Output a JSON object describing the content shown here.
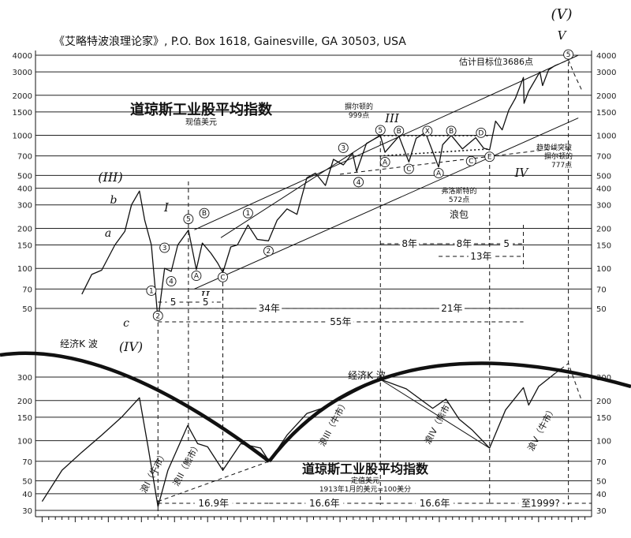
{
  "header": "《艾略特波浪理论家》, P.O. Box 1618, Gainesville, GA 30503, USA",
  "chart_data": [
    {
      "type": "line",
      "title": "道琼斯工业股平均指数",
      "subtitle": "现值美元",
      "yscale": "log",
      "ylim": [
        40,
        4000
      ],
      "y_ticks": [
        4000,
        3000,
        2000,
        1500,
        1000,
        700,
        500,
        400,
        300,
        200,
        150,
        100,
        70,
        50
      ],
      "annotations": {
        "top_wave": "(V)",
        "top_wave_v": "V",
        "target": "估计目标位3686点",
        "barron_999": "摒尔顿的",
        "barron_999_value": "999点",
        "barron_777": "摒尔顿的",
        "barron_777_value": "777点",
        "froth": "弗洛斯特的",
        "froth_value": "572点",
        "trend_break": "趋势线突破",
        "triangle": "浪包",
        "wave_III_big": "(III)",
        "wave_IV_big": "(IV)",
        "wave_I": "I",
        "wave_II": "II",
        "wave_III": "III",
        "wave_IV": "IV",
        "a": "a",
        "b": "b",
        "c": "c",
        "span_5a": "5",
        "span_5b": "5",
        "span_34": "34年",
        "span_55": "55年",
        "span_21": "21年",
        "span_8a": "8年",
        "span_8b": "8年",
        "span_13": "13年",
        "span_5c": "5"
      },
      "series": [
        {
          "x": [
            1921,
            1922.5,
            1924,
            1926,
            1927.5,
            1928.5,
            1929.7,
            1930.5,
            1931.5,
            1932.5,
            1933.5,
            1934.5,
            1935.5,
            1937.1,
            1938.3,
            1939.2,
            1940.5,
            1941.5,
            1942.3,
            1943.5,
            1944.5,
            1946.1,
            1947.5,
            1949.2,
            1950.5,
            1952,
            1953.5,
            1955,
            1956.3,
            1957.8,
            1959,
            1960.5,
            1961.9,
            1962.5,
            1964,
            1966.1,
            1966.8,
            1968.9,
            1970.4,
            1971.5,
            1972.9,
            1974.9,
            1975.5,
            1976.8,
            1978.5,
            1980.5,
            1981.7,
            1982.6,
            1983.5,
            1984.5,
            1985.5,
            1986.5,
            1987.7,
            1987.8,
            1988.5,
            1990.2,
            1990.6,
            1991.5,
            1992.5
          ],
          "values": [
            64,
            90,
            97,
            150,
            190,
            300,
            381,
            230,
            150,
            41,
            100,
            95,
            150,
            194,
            98,
            155,
            130,
            110,
            93,
            145,
            150,
            212,
            165,
            161,
            230,
            280,
            255,
            480,
            520,
            420,
            660,
            600,
            735,
            535,
            870,
            995,
            745,
            985,
            631,
            950,
            1051,
            577,
            850,
            1000,
            790,
            960,
            800,
            777,
            1280,
            1100,
            1550,
            1900,
            2722,
            1739,
            2150,
            2999,
            2365,
            3100,
            3350
          ]
        },
        {
          "name": "projection",
          "x": [
            1992.5,
            1994.5,
            1995.5,
            1996.5
          ],
          "values": [
            3350,
            3686,
            2800,
            2200
          ]
        }
      ]
    },
    {
      "type": "line",
      "title": "道琼斯工业股平均指数",
      "subtitle": "定值美元",
      "note": "1913年1月的美元=100美分",
      "yscale": "log",
      "ylim": [
        30,
        400
      ],
      "y_ticks": [
        300,
        200,
        150,
        100,
        70,
        50,
        40,
        30
      ],
      "labels": {
        "kwave_left": "经济K 波",
        "kwave_right": "经济K 波",
        "wave_1": "浪I（牛市）",
        "wave_2": "浪II（熊市）",
        "wave_3": "浪III（牛市）",
        "wave_4": "浪IV（熊市）",
        "wave_5": "浪V（牛市）",
        "span_169": "16.9年",
        "span_166a": "16.6年",
        "span_166b": "16.6年",
        "span_1999": "至1999?"
      },
      "series": [
        {
          "x": [
            1915,
            1918,
            1921,
            1924,
            1927,
            1929.7,
            1931,
            1932.5,
            1934,
            1937,
            1938.5,
            1940,
            1942.3,
            1945,
            1948,
            1949.3,
            1952,
            1955,
            1958,
            1962,
            1966,
            1970,
            1974,
            1976,
            1978,
            1980,
            1982.6,
            1985,
            1987.7,
            1988.5,
            1990,
            1992.5
          ],
          "values": [
            35,
            60,
            82,
            110,
            150,
            210,
            90,
            32,
            60,
            130,
            95,
            90,
            60,
            95,
            88,
            70,
            110,
            160,
            180,
            230,
            290,
            245,
            175,
            205,
            145,
            120,
            88,
            170,
            250,
            185,
            255,
            320
          ]
        },
        {
          "name": "projection",
          "x": [
            1992.5,
            1994.5,
            1996.5
          ],
          "values": [
            320,
            380,
            200
          ]
        }
      ]
    }
  ]
}
